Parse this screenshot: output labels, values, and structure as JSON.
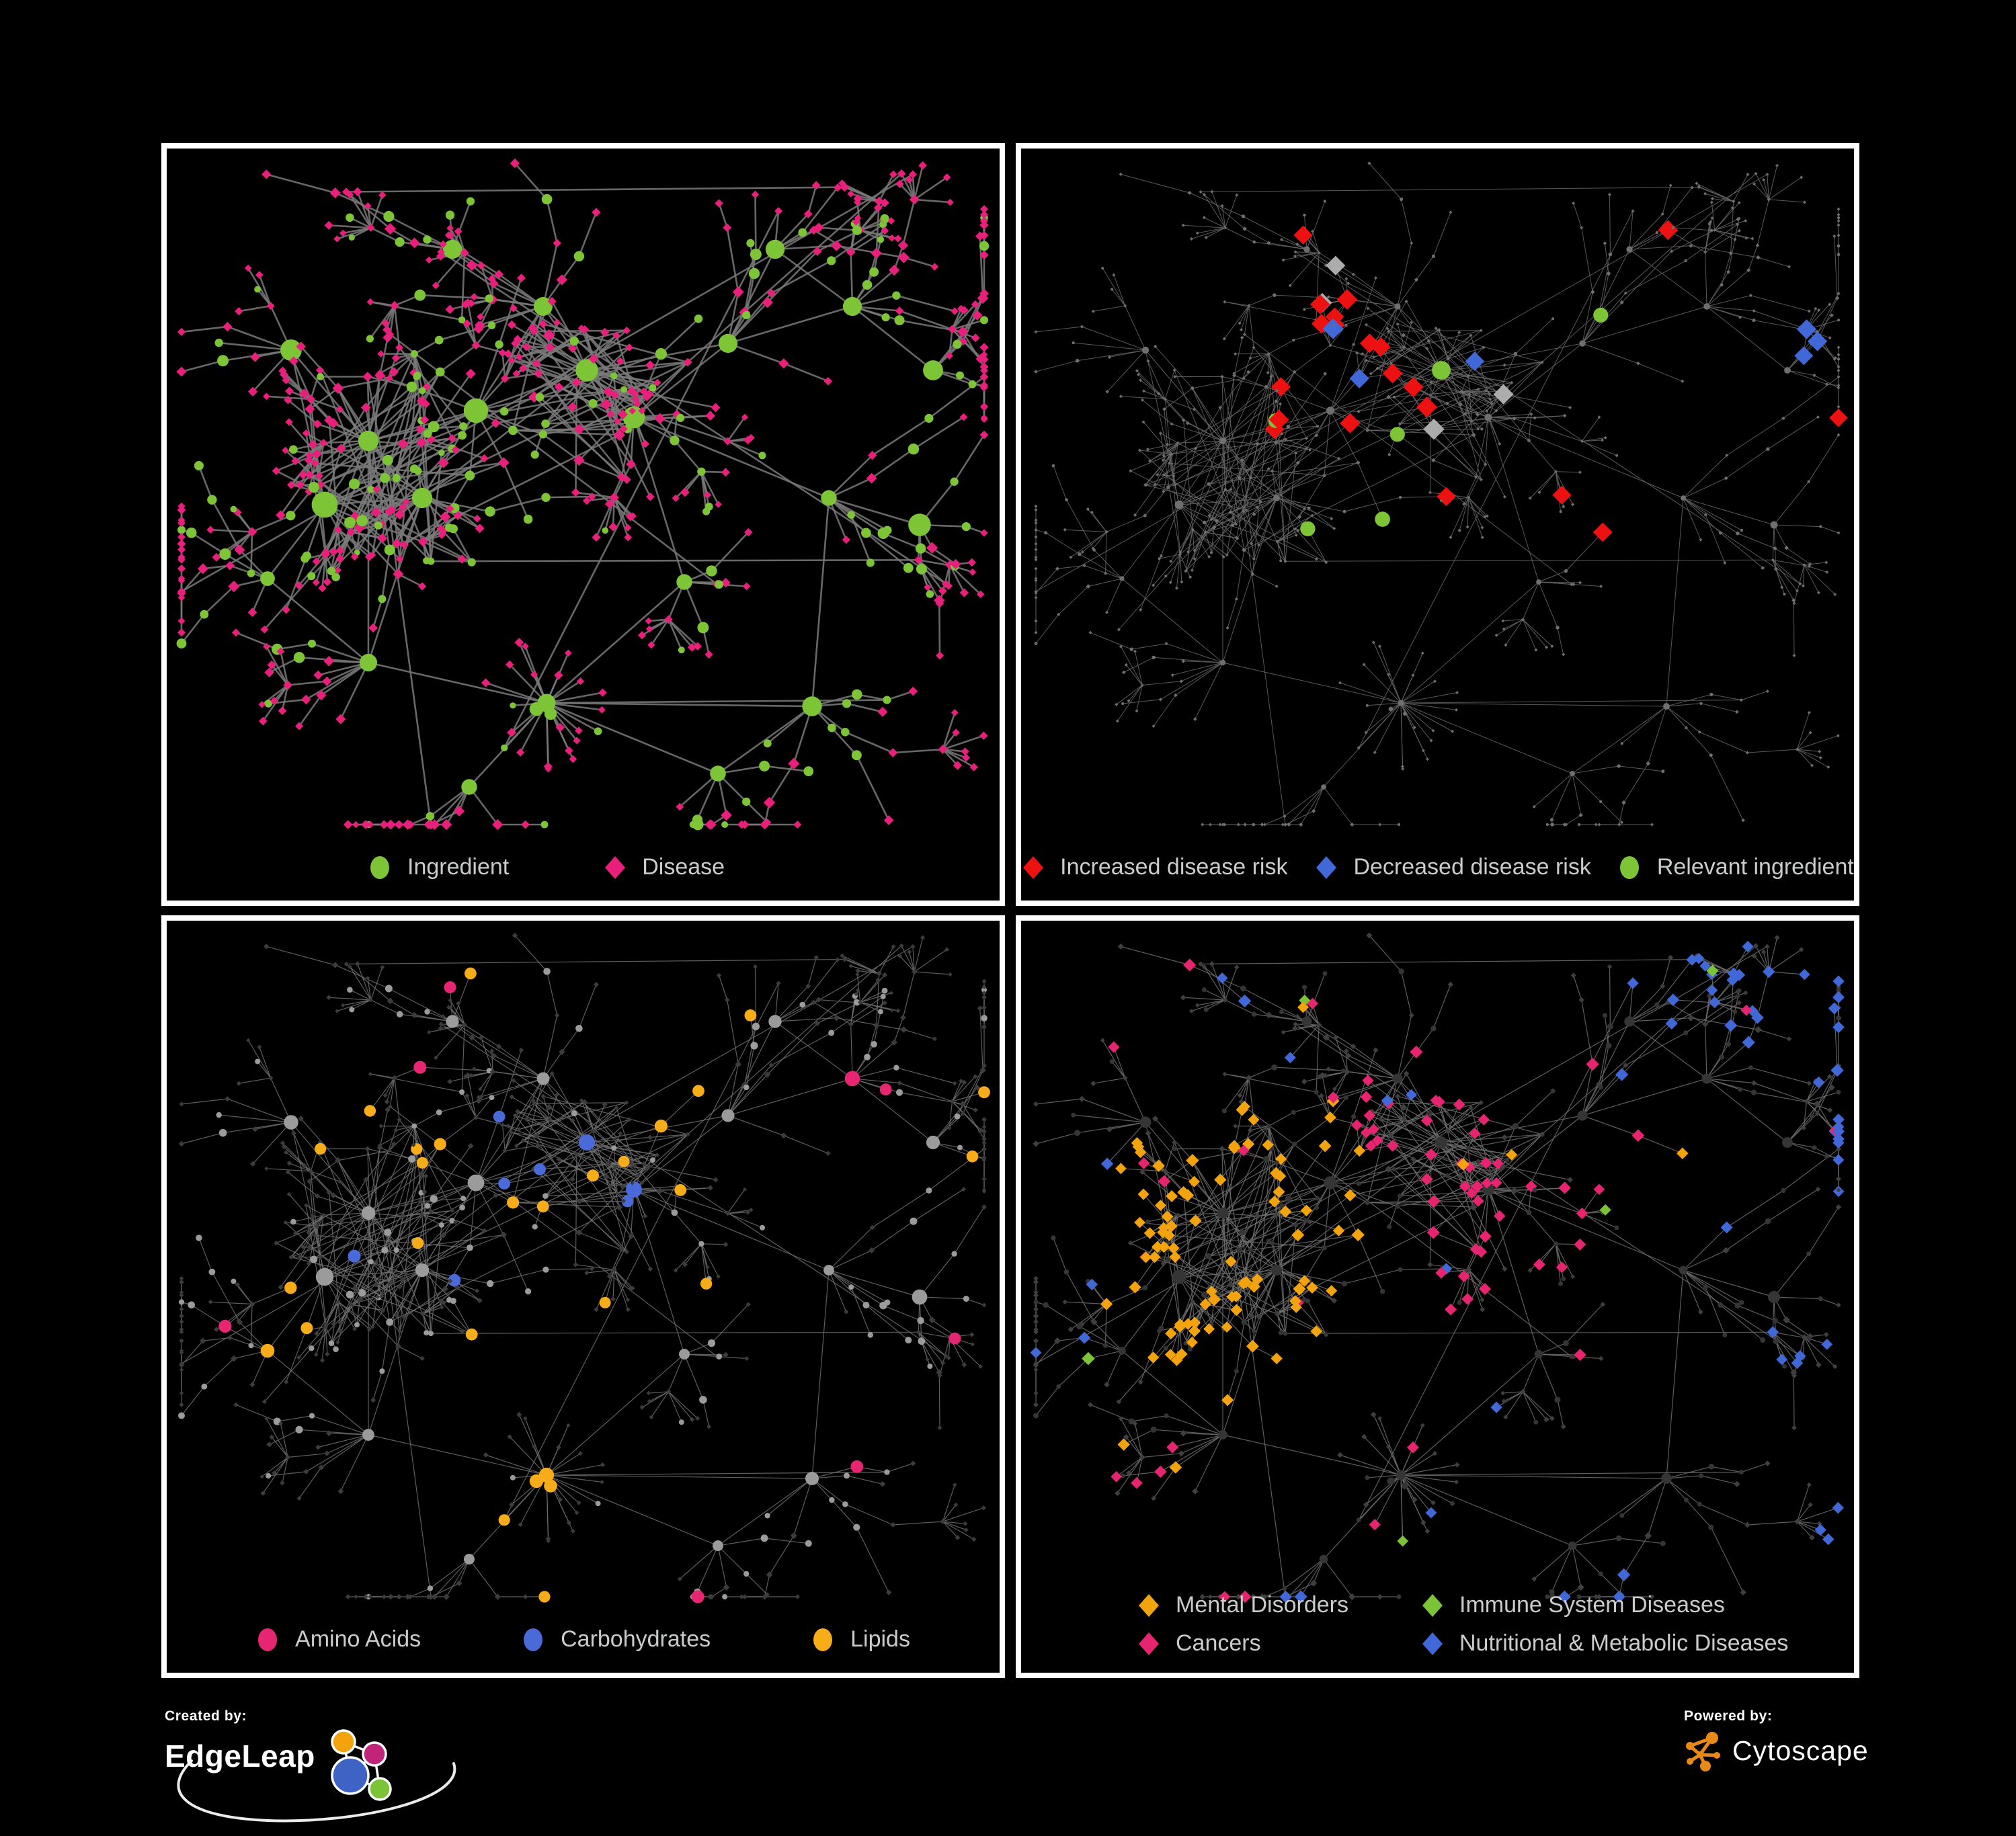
{
  "page": {
    "background": "#000000",
    "panel_border": "#FFFFFF",
    "legend_text_color": "#C9CCCB"
  },
  "panels": [
    {
      "id": "ingredient-disease",
      "legend_items": [
        {
          "label": "Ingredient",
          "shape": "circle",
          "color": "#7EC437"
        },
        {
          "label": "Disease",
          "shape": "diamond",
          "color": "#E81F7B"
        }
      ]
    },
    {
      "id": "disease-risk",
      "legend_items": [
        {
          "label": "Increased disease risk",
          "shape": "diamond",
          "color": "#ED1111"
        },
        {
          "label": "Decreased disease risk",
          "shape": "diamond",
          "color": "#4168D9"
        },
        {
          "label": "Relevant ingredient",
          "shape": "circle",
          "color": "#7EC437"
        }
      ]
    },
    {
      "id": "nutrient-classes",
      "legend_items": [
        {
          "label": "Amino Acids",
          "shape": "circle",
          "color": "#E72573"
        },
        {
          "label": "Carbohydrates",
          "shape": "circle",
          "color": "#4A6AD9"
        },
        {
          "label": "Lipids",
          "shape": "circle",
          "color": "#F7AD19"
        }
      ]
    },
    {
      "id": "disease-classes",
      "legend_items": [
        {
          "label": "Mental Disorders",
          "shape": "diamond",
          "color": "#F2A30D"
        },
        {
          "label": "Immune System Diseases",
          "shape": "diamond",
          "color": "#7CC437"
        },
        {
          "label": "Cancers",
          "shape": "diamond",
          "color": "#E7246F"
        },
        {
          "label": "Nutritional & Metabolic Diseases",
          "shape": "diamond",
          "color": "#4168D9"
        }
      ]
    }
  ],
  "footer": {
    "created_by_label": "Created by:",
    "created_by_name": "EdgeLeap",
    "powered_by_label": "Powered by:",
    "powered_by_name": "Cytoscape",
    "cytoscape_orange": "#E98A17",
    "edgeleap_palette": {
      "orange": "#F2A30D",
      "magenta": "#C02579",
      "blue": "#3E63C4",
      "green": "#7CC437"
    }
  },
  "network": {
    "seed": 1337,
    "views": [
      {
        "name": "ingredient-disease",
        "edge": "#7A7A7A",
        "edge_width": 2.6,
        "circle": "#7EC437",
        "diamond": "#E81F7B"
      },
      {
        "name": "disease-risk",
        "edge": "#696969",
        "edge_width": 1.0,
        "base": "#6F6F6F",
        "highlights": {
          "increased": "#ED1111",
          "decreased": "#4168D9",
          "neutral": "#ACACAC",
          "relevant": "#7EC437"
        }
      },
      {
        "name": "nutrient-classes",
        "edge": "#6E6E6E",
        "edge_width": 1.2,
        "circle": "#9B9B9B",
        "diamond": "#3C3C3C",
        "highlights": {
          "amino": "#E72573",
          "carb": "#4A6AD9",
          "lipid": "#F7AD19"
        }
      },
      {
        "name": "disease-classes",
        "edge": "#6E6E6E",
        "edge_width": 1.2,
        "circle": "#353535",
        "diamond": "#3F3F3F",
        "highlights": {
          "mental": "#F2A30D",
          "immune": "#7CC437",
          "cancer": "#E7246F",
          "nutri": "#4168D9"
        }
      }
    ]
  }
}
